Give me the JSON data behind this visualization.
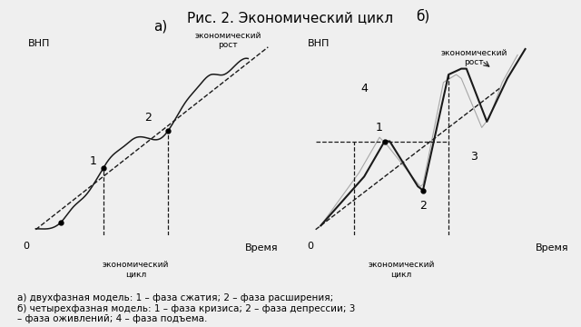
{
  "title": "Рис. 2. Экономический цикл",
  "title_fontsize": 11,
  "label_a": "а)",
  "label_b": "б)",
  "subplot_a": {
    "ylabel": "ВНП",
    "xlabel": "Время",
    "cycle_label": "экономический\nцикл",
    "trend_label": "экономический\nрост",
    "label1": "1",
    "label2": "2"
  },
  "subplot_b": {
    "ylabel": "ВНП",
    "xlabel": "Время",
    "cycle_label": "экономический\nцикл",
    "trend_label": "экономический\nрост",
    "label1": "1",
    "label2": "2",
    "label3": "3",
    "label4": "4"
  },
  "caption": "а) двухфазная модель: 1 – фаза сжатия; 2 – фаза расширения;\nб) четырехфазная модель: 1 – фаза кризиса; 2 – фаза депрессии; 3\n– фаза оживлений; 4 – фаза подъема.",
  "bg_color": "#efefef",
  "line_color": "#1a1a1a"
}
